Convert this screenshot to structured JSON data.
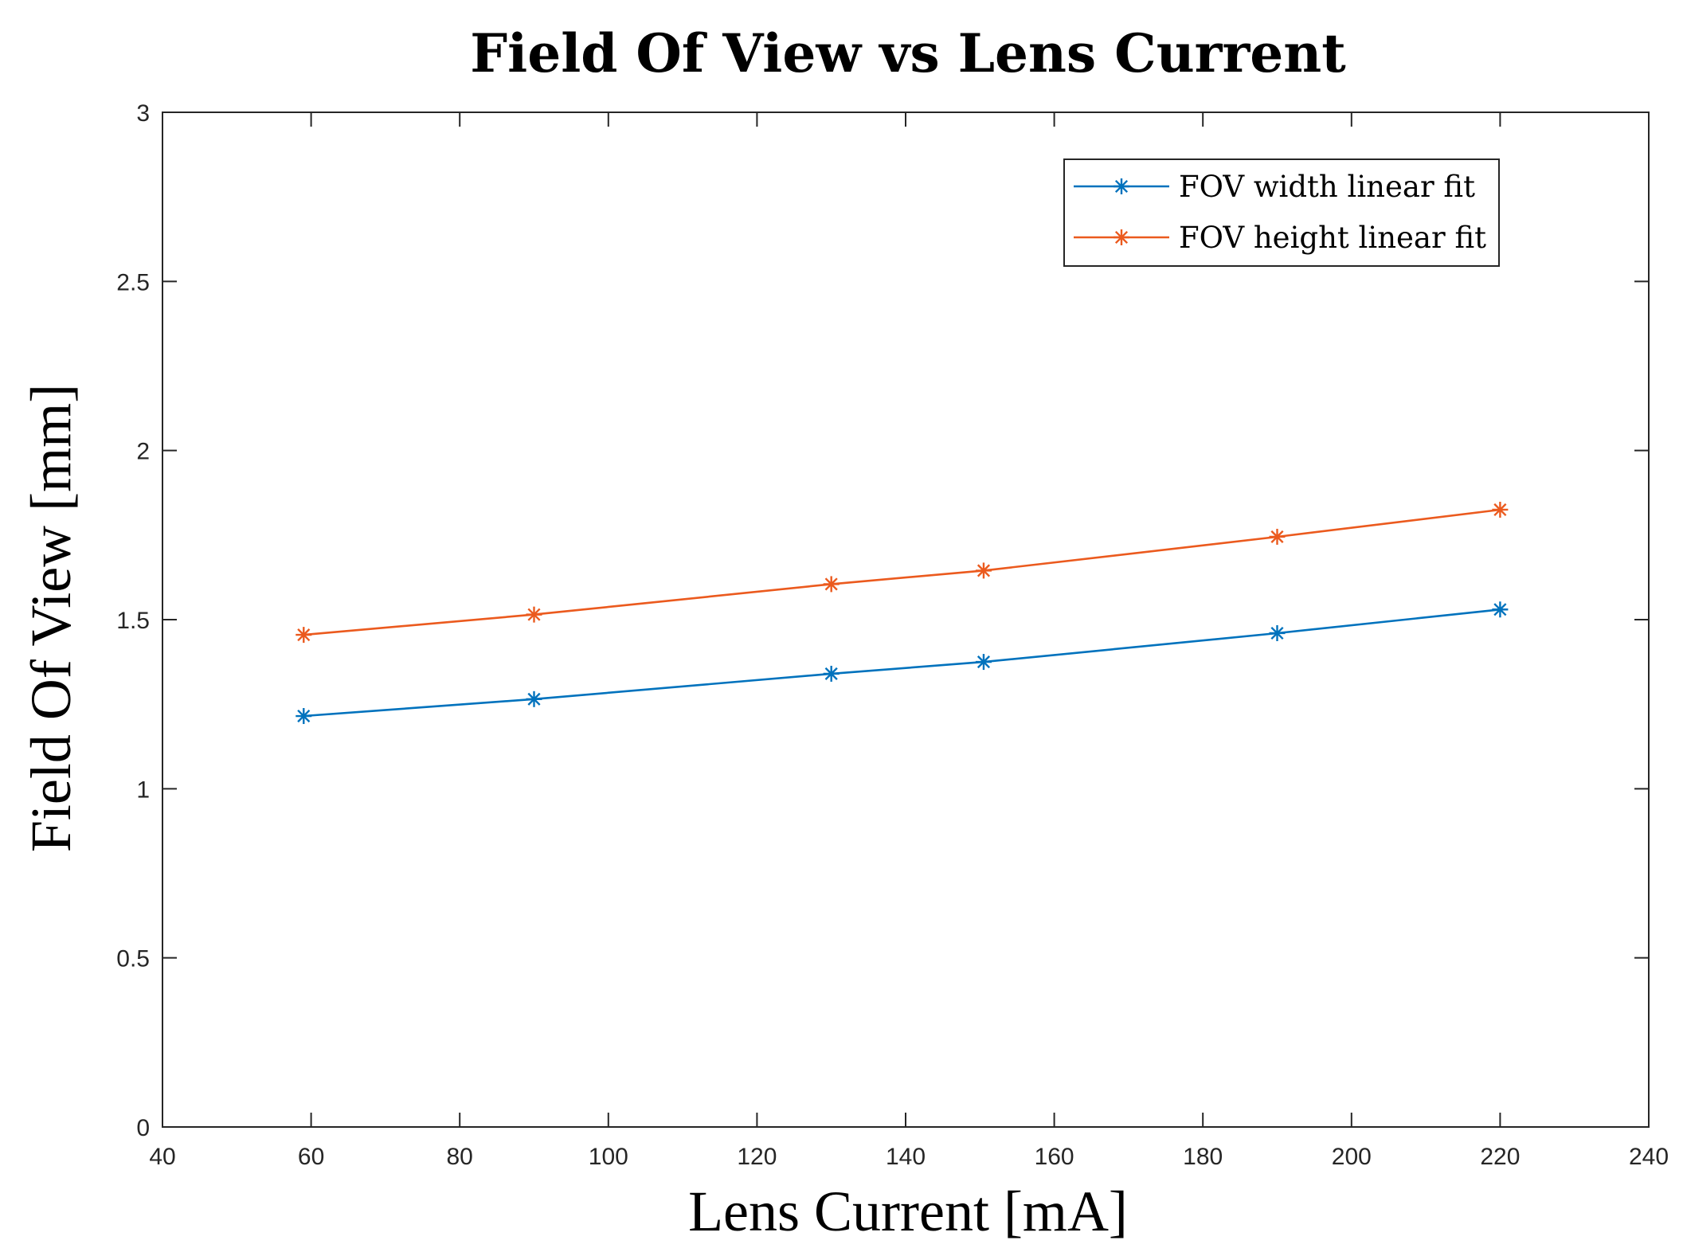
{
  "chart_data": {
    "type": "line",
    "title": "Field Of View vs Lens Current",
    "xlabel": "Lens Current [mA]",
    "ylabel": "Field Of View [mm]",
    "xlim": [
      40,
      240
    ],
    "ylim": [
      0,
      3
    ],
    "xticks": [
      40,
      60,
      80,
      100,
      120,
      140,
      160,
      180,
      200,
      220,
      240
    ],
    "yticks": [
      0,
      0.5,
      1,
      1.5,
      2,
      2.5,
      3
    ],
    "xtick_labels": [
      "40",
      "60",
      "80",
      "100",
      "120",
      "140",
      "160",
      "180",
      "200",
      "220",
      "240"
    ],
    "ytick_labels": [
      "0",
      "0.5",
      "1",
      "1.5",
      "2",
      "2.5",
      "3"
    ],
    "grid": false,
    "legend_position": "top-right",
    "x": [
      59,
      90,
      130,
      150.5,
      190,
      220
    ],
    "series": [
      {
        "name": "FOV width linear fit",
        "color": "#0072BD",
        "marker": "asterisk",
        "values": [
          1.215,
          1.265,
          1.34,
          1.375,
          1.46,
          1.53
        ]
      },
      {
        "name": "FOV height linear fit",
        "color": "#EB5A1E",
        "marker": "asterisk",
        "values": [
          1.455,
          1.515,
          1.605,
          1.645,
          1.745,
          1.825
        ]
      }
    ]
  }
}
